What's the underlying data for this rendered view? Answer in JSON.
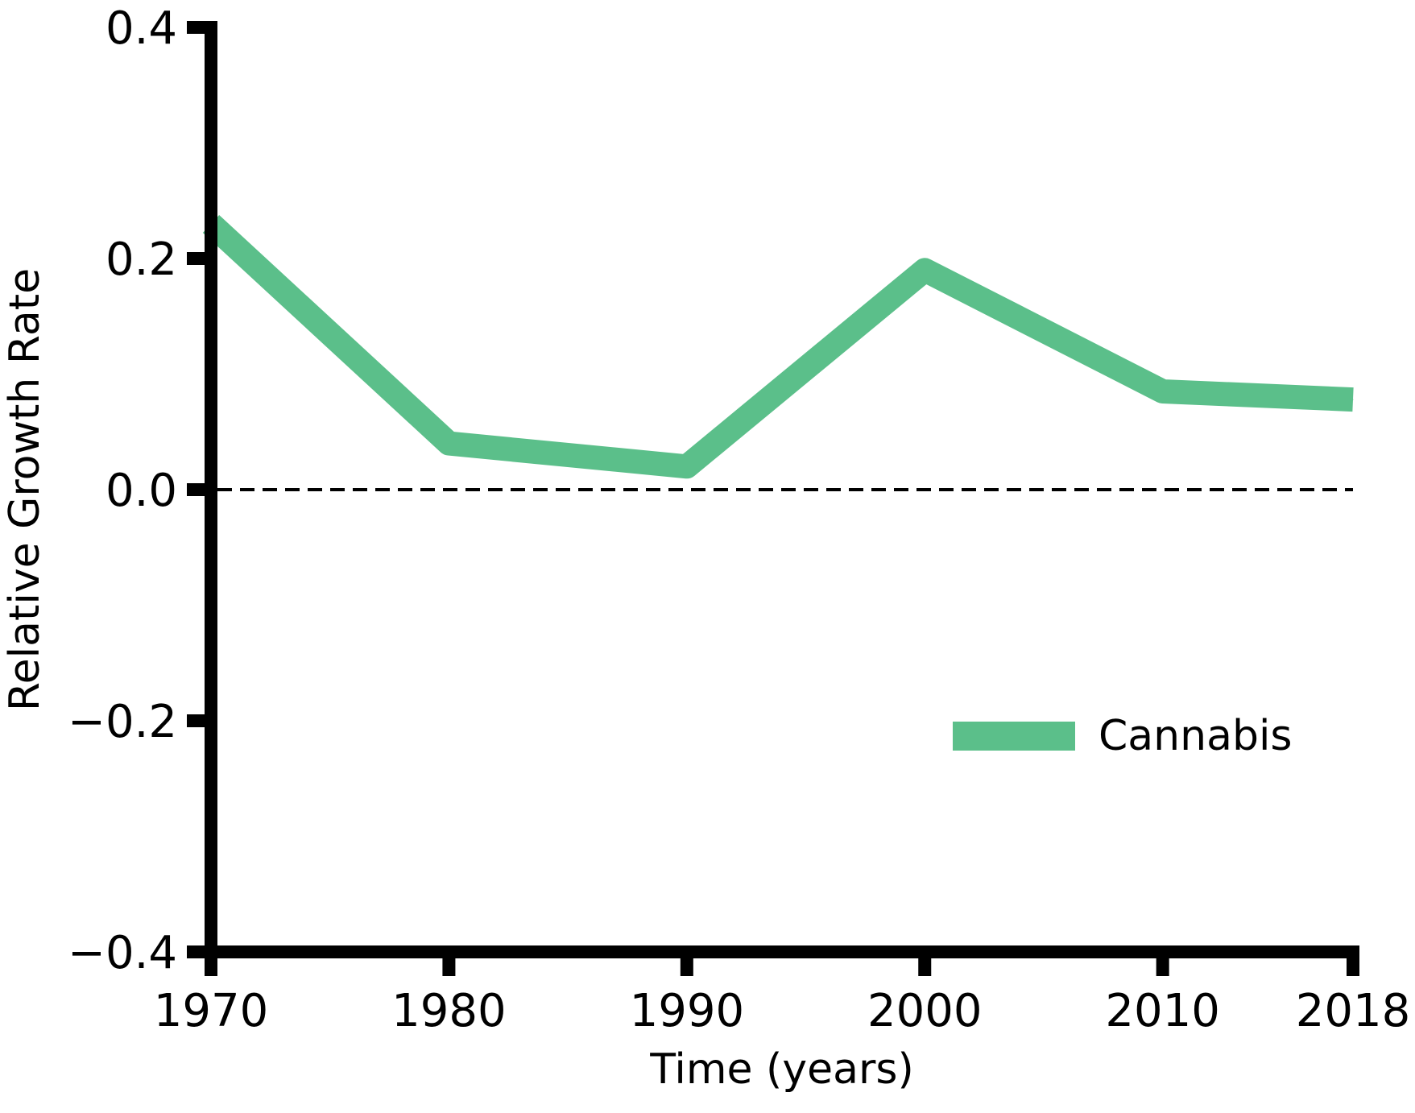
{
  "chart_data": {
    "type": "line",
    "title": "",
    "xlabel": "Time (years)",
    "ylabel": "Relative Growth Rate",
    "x": [
      1970,
      1980,
      1990,
      2000,
      2010,
      2018
    ],
    "xticks": [
      "1970",
      "1980",
      "1990",
      "2000",
      "2010",
      "2018"
    ],
    "yticks": [
      "0.4",
      "0.2",
      "0.0",
      "−0.2",
      "−0.4"
    ],
    "xlim": [
      1970,
      2018
    ],
    "ylim": [
      -0.4,
      0.4
    ],
    "grid": false,
    "legend_position": "lower-right",
    "reference_line": {
      "y": 0.0,
      "style": "dashed"
    },
    "series": [
      {
        "name": "Cannabis",
        "color": "#5bbf8a",
        "values": [
          0.23,
          0.04,
          0.02,
          0.19,
          0.085,
          0.078
        ]
      }
    ]
  }
}
